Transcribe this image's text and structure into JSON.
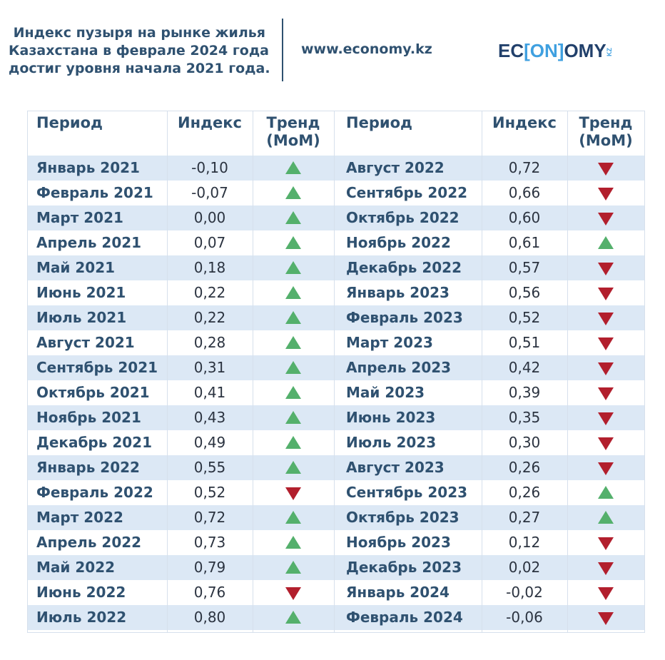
{
  "header": {
    "title_lines": [
      "Индекс пузыря на рынке жилья",
      "Казахстана в феврале 2024 года",
      "достиг уровня начала 2021 года."
    ],
    "site": "www.economy.kz",
    "logo": {
      "part1": "EC",
      "part2": "[ON]",
      "part3": "OMY",
      "suffix": "KZ"
    }
  },
  "table": {
    "headers": {
      "period": "Период",
      "index": "Индекс",
      "trend_line1": "Тренд",
      "trend_line2": "(MoM)"
    },
    "left": [
      {
        "period": "Январь 2021",
        "index": "-0,10",
        "trend": "up"
      },
      {
        "period": "Февраль 2021",
        "index": "-0,07",
        "trend": "up"
      },
      {
        "period": "Март 2021",
        "index": "0,00",
        "trend": "up"
      },
      {
        "period": "Апрель 2021",
        "index": "0,07",
        "trend": "up"
      },
      {
        "period": "Май 2021",
        "index": "0,18",
        "trend": "up"
      },
      {
        "period": "Июнь 2021",
        "index": "0,22",
        "trend": "up"
      },
      {
        "period": "Июль 2021",
        "index": "0,22",
        "trend": "up"
      },
      {
        "period": "Август 2021",
        "index": "0,28",
        "trend": "up"
      },
      {
        "period": "Сентябрь 2021",
        "index": "0,31",
        "trend": "up"
      },
      {
        "period": "Октябрь 2021",
        "index": "0,41",
        "trend": "up"
      },
      {
        "period": "Ноябрь 2021",
        "index": "0,43",
        "trend": "up"
      },
      {
        "period": "Декабрь 2021",
        "index": "0,49",
        "trend": "up"
      },
      {
        "period": "Январь 2022",
        "index": "0,55",
        "trend": "up"
      },
      {
        "period": "Февраль 2022",
        "index": "0,52",
        "trend": "down"
      },
      {
        "period": "Март 2022",
        "index": "0,72",
        "trend": "up"
      },
      {
        "period": "Апрель 2022",
        "index": "0,73",
        "trend": "up"
      },
      {
        "period": "Май 2022",
        "index": "0,79",
        "trend": "up"
      },
      {
        "period": "Июнь 2022",
        "index": "0,76",
        "trend": "down"
      },
      {
        "period": "Июль 2022",
        "index": "0,80",
        "trend": "up"
      }
    ],
    "right": [
      {
        "period": "Август 2022",
        "index": "0,72",
        "trend": "down"
      },
      {
        "period": "Сентябрь 2022",
        "index": "0,66",
        "trend": "down"
      },
      {
        "period": "Октябрь 2022",
        "index": "0,60",
        "trend": "down"
      },
      {
        "period": "Ноябрь 2022",
        "index": "0,61",
        "trend": "up"
      },
      {
        "period": "Декабрь 2022",
        "index": "0,57",
        "trend": "down"
      },
      {
        "period": "Январь 2023",
        "index": "0,56",
        "trend": "down"
      },
      {
        "period": "Февраль 2023",
        "index": "0,52",
        "trend": "down"
      },
      {
        "period": "Март 2023",
        "index": "0,51",
        "trend": "down"
      },
      {
        "period": "Апрель 2023",
        "index": "0,42",
        "trend": "down"
      },
      {
        "period": "Май 2023",
        "index": "0,39",
        "trend": "down"
      },
      {
        "period": "Июнь 2023",
        "index": "0,35",
        "trend": "down"
      },
      {
        "period": "Июль 2023",
        "index": "0,30",
        "trend": "down"
      },
      {
        "period": "Август 2023",
        "index": "0,26",
        "trend": "down"
      },
      {
        "period": "Сентябрь 2023",
        "index": "0,26",
        "trend": "up"
      },
      {
        "period": "Октябрь 2023",
        "index": "0,27",
        "trend": "up"
      },
      {
        "period": "Ноябрь 2023",
        "index": "0,12",
        "trend": "down"
      },
      {
        "period": "Декабрь 2023",
        "index": "0,02",
        "trend": "down"
      },
      {
        "period": "Январь 2024",
        "index": "-0,02",
        "trend": "down"
      },
      {
        "period": "Февраль 2024",
        "index": "-0,06",
        "trend": "down"
      }
    ]
  },
  "colors": {
    "brand_dark": "#2f5170",
    "row_shade": "#dce8f5",
    "trend_up": "#54b06c",
    "trend_down": "#b21f2d"
  }
}
